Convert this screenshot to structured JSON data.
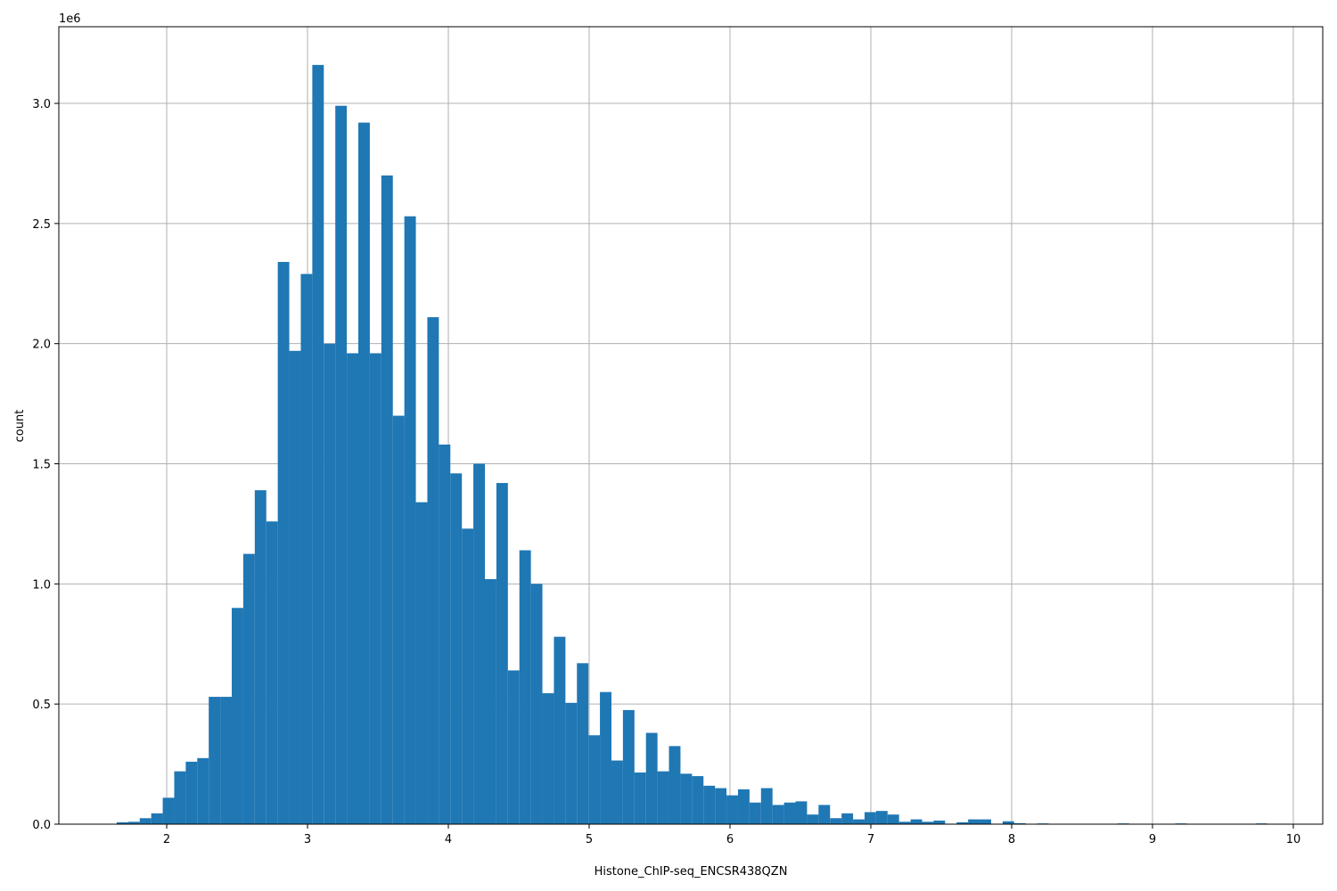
{
  "chart_data": {
    "type": "histogram",
    "color": "#1f77b4",
    "grid": true,
    "x_label": "Histone_ChIP-seq_ENCSR438QZN",
    "y_label": "count",
    "y_offset_label": "1e6",
    "bins": [
      1.645,
      1.7267,
      1.8084,
      1.8901,
      1.9718,
      2.0535,
      2.1352,
      2.2169,
      2.2986,
      2.3803,
      2.462,
      2.5437,
      2.6254,
      2.7071,
      2.7888,
      2.8705,
      2.9522,
      3.0339,
      3.1156,
      3.1973,
      3.279,
      3.3607,
      3.4424,
      3.5241,
      3.6058,
      3.6875,
      3.7692,
      3.8509,
      3.9326,
      4.0143,
      4.096,
      4.1777,
      4.2594,
      4.3411,
      4.4228,
      4.5045,
      4.5862,
      4.6679,
      4.7496,
      4.8313,
      4.913,
      4.9947,
      5.0764,
      5.1581,
      5.2398,
      5.3215,
      5.4032,
      5.4849,
      5.5666,
      5.6483,
      5.73,
      5.8117,
      5.8934,
      5.9751,
      6.0568,
      6.1385,
      6.2202,
      6.3019,
      6.3836,
      6.4653,
      6.547,
      6.6287,
      6.7104,
      6.7921,
      6.8738,
      6.9555,
      7.0372,
      7.1189,
      7.2006,
      7.2823,
      7.364,
      7.4457,
      7.5274,
      7.6091,
      7.6908,
      7.7725,
      7.8542,
      7.9359,
      8.0176,
      8.0993,
      8.181,
      8.2627,
      8.3444,
      8.4261,
      8.5078,
      8.5895,
      8.6712,
      8.7529,
      8.8346,
      8.9163,
      8.998,
      9.0797,
      9.1614,
      9.2431,
      9.3248,
      9.4065,
      9.4882,
      9.5699,
      9.6516,
      9.7333,
      9.815
    ],
    "counts": [
      0.008,
      0.01,
      0.025,
      0.045,
      0.11,
      0.22,
      0.26,
      0.275,
      0.53,
      0.53,
      0.9,
      1.125,
      1.39,
      1.26,
      2.34,
      1.97,
      2.29,
      3.16,
      2.0,
      2.99,
      1.96,
      2.92,
      1.96,
      2.7,
      1.7,
      2.53,
      1.34,
      2.11,
      1.58,
      1.46,
      1.23,
      1.5,
      1.02,
      1.42,
      0.64,
      1.14,
      1.0,
      0.545,
      0.78,
      0.505,
      0.67,
      0.37,
      0.55,
      0.265,
      0.475,
      0.215,
      0.38,
      0.22,
      0.325,
      0.21,
      0.2,
      0.16,
      0.15,
      0.12,
      0.145,
      0.09,
      0.15,
      0.08,
      0.09,
      0.095,
      0.04,
      0.08,
      0.025,
      0.045,
      0.02,
      0.05,
      0.055,
      0.04,
      0.01,
      0.02,
      0.01,
      0.015,
      0.002,
      0.008,
      0.02,
      0.02,
      0.002,
      0.012,
      0.004,
      0.001,
      0.003,
      0,
      0,
      0,
      0,
      0,
      0,
      0.003,
      0,
      0,
      0,
      0,
      0.003,
      0,
      0,
      0,
      0,
      0,
      0,
      0.003
    ],
    "xlim": [
      1.234,
      10.209
    ],
    "ylim": [
      0,
      3.319
    ],
    "xticks": [
      2,
      3,
      4,
      5,
      6,
      7,
      8,
      9,
      10
    ],
    "yticks": [
      {
        "value": 0,
        "label": "0.0"
      },
      0.5,
      {
        "value": 1,
        "label": "1.0"
      },
      1.5,
      {
        "value": 2,
        "label": "2.0"
      },
      2.5,
      {
        "value": 3,
        "label": "3.0"
      }
    ]
  }
}
